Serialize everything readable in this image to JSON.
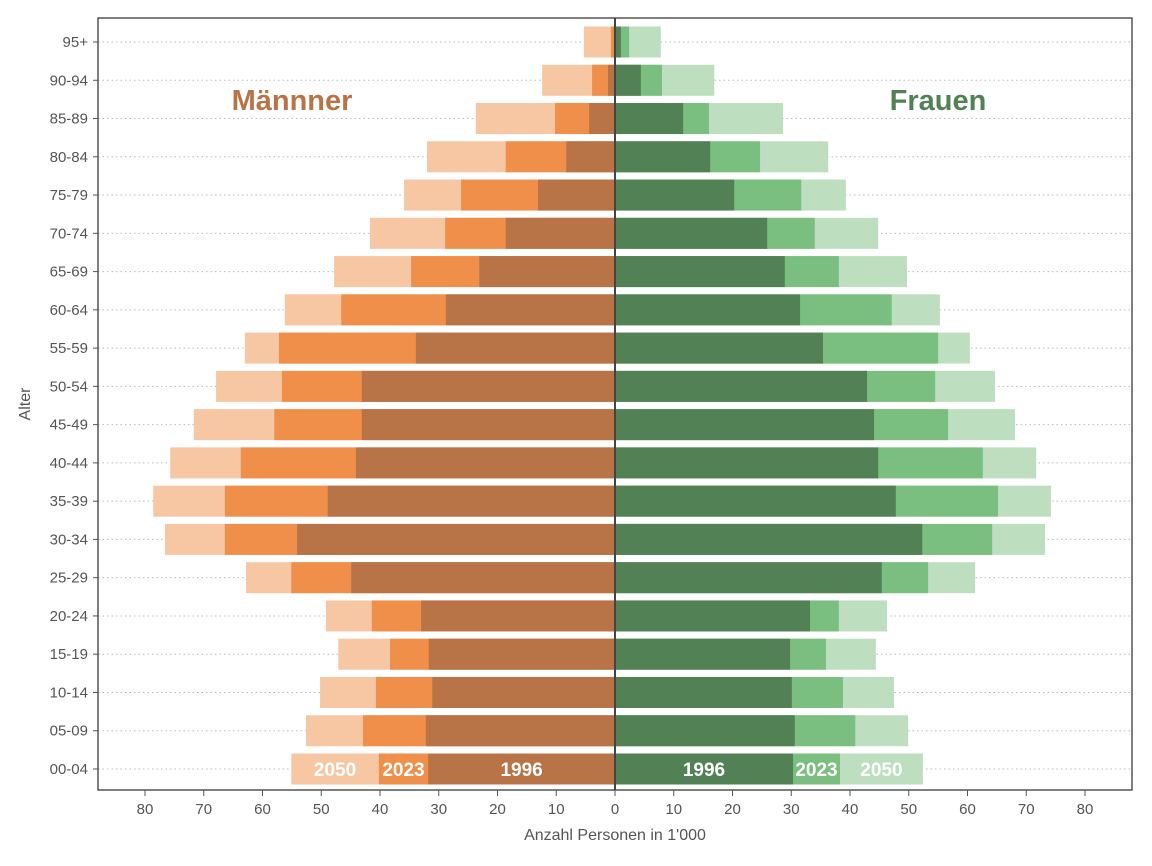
{
  "chart_data": {
    "type": "bar",
    "orientation": "horizontal",
    "subtype": "population-pyramid",
    "xlabel": "Anzahl Personen in 1'000",
    "ylabel": "Alter",
    "xlim": [
      -88,
      88
    ],
    "x_ticks": [
      80,
      70,
      60,
      50,
      40,
      30,
      20,
      10,
      0,
      10,
      20,
      30,
      40,
      50,
      60,
      70,
      80
    ],
    "grid": "horizontal dotted",
    "categories": [
      "00-04",
      "05-09",
      "10-14",
      "15-19",
      "20-24",
      "25-29",
      "30-34",
      "35-39",
      "40-44",
      "45-49",
      "50-54",
      "55-59",
      "60-64",
      "65-69",
      "70-74",
      "75-79",
      "80-84",
      "85-89",
      "90-94",
      "95+"
    ],
    "groups": [
      {
        "name": "Männner",
        "side": "left",
        "label_color": "#b87447",
        "series": [
          {
            "name": "2050",
            "color": "#f7c6a3",
            "values": [
              55.1,
              52.6,
              50.2,
              47.1,
              49.2,
              62.8,
              76.6,
              78.6,
              75.7,
              71.7,
              67.9,
              63.0,
              56.2,
              47.8,
              41.7,
              35.9,
              32.0,
              23.7,
              12.4,
              5.3
            ]
          },
          {
            "name": "2023",
            "color": "#f08f4a",
            "values": [
              40.2,
              42.9,
              40.7,
              38.3,
              41.4,
              55.1,
              66.4,
              66.4,
              63.7,
              58.0,
              56.7,
              57.2,
              46.6,
              34.7,
              28.9,
              26.2,
              18.6,
              10.2,
              3.9,
              0.7
            ]
          },
          {
            "name": "1996",
            "color": "#b87447",
            "values": [
              31.8,
              32.2,
              31.1,
              31.7,
              33.0,
              44.9,
              54.1,
              48.9,
              44.1,
              43.1,
              43.1,
              33.9,
              28.8,
              23.1,
              18.6,
              13.1,
              8.3,
              4.4,
              1.2,
              0.2
            ]
          }
        ]
      },
      {
        "name": "Frauen",
        "side": "right",
        "label_color": "#528155",
        "series": [
          {
            "name": "2050",
            "color": "#bddfc0",
            "values": [
              52.4,
              49.9,
              47.5,
              44.4,
              46.3,
              61.3,
              73.2,
              74.2,
              71.7,
              68.1,
              64.7,
              60.4,
              55.3,
              49.7,
              44.8,
              39.3,
              36.3,
              28.6,
              16.9,
              7.8
            ]
          },
          {
            "name": "2023",
            "color": "#7abf7f",
            "values": [
              38.3,
              40.9,
              38.8,
              35.9,
              38.1,
              53.3,
              64.2,
              65.2,
              62.6,
              56.7,
              54.5,
              55.0,
              47.1,
              38.1,
              34.0,
              31.7,
              24.7,
              16.0,
              8.0,
              2.4
            ]
          },
          {
            "name": "1996",
            "color": "#528155",
            "values": [
              30.3,
              30.6,
              30.1,
              29.8,
              33.2,
              45.4,
              52.3,
              47.8,
              44.8,
              44.1,
              42.9,
              35.4,
              31.5,
              28.9,
              25.9,
              20.3,
              16.2,
              11.6,
              4.4,
              1.0
            ]
          }
        ]
      }
    ]
  }
}
